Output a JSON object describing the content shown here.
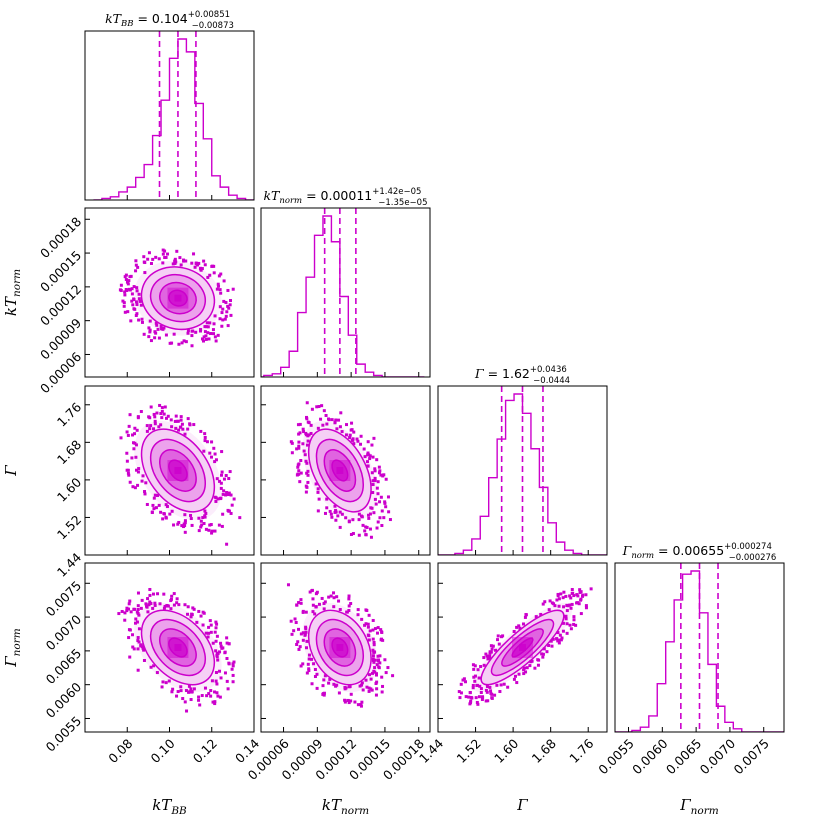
{
  "chart_data": {
    "type": "corner",
    "color": "#cc00cc",
    "parameters": [
      {
        "key": "kTBB",
        "label_main": "kT",
        "label_sub": "BB",
        "title_eq": " = 0.104",
        "title_plus": "+0.00851",
        "title_minus": "−0.00873",
        "median": 0.104,
        "q16": 0.09527,
        "q84": 0.11251,
        "range": [
          0.06,
          0.14
        ],
        "ticks": [
          {
            "v": 0.08,
            "t": "0.08"
          },
          {
            "v": 0.1,
            "t": "0.10"
          },
          {
            "v": 0.12,
            "t": "0.12"
          },
          {
            "v": 0.14,
            "t": "0.14"
          }
        ],
        "hist": {
          "bin_width": 0.004,
          "counts": [
            0,
            1,
            2,
            5,
            8,
            14,
            22,
            40,
            62,
            88,
            100,
            92,
            60,
            38,
            15,
            8,
            3,
            1,
            0,
            0
          ]
        }
      },
      {
        "key": "kTnorm",
        "label_main": "kT",
        "label_sub": "norm",
        "title_eq": " = 0.00011",
        "title_plus": "+1.42e−05",
        "title_minus": "−1.35e−05",
        "median": 0.00011,
        "q16": 9.65e-05,
        "q84": 0.0001242,
        "range": [
          4e-05,
          0.00019
        ],
        "ticks": [
          {
            "v": 6e-05,
            "t": "0.00006"
          },
          {
            "v": 9e-05,
            "t": "0.00009"
          },
          {
            "v": 0.00012,
            "t": "0.00012"
          },
          {
            "v": 0.00015,
            "t": "0.00015"
          },
          {
            "v": 0.00018,
            "t": "0.00018"
          }
        ],
        "hist": {
          "bin_width": 7.5e-06,
          "counts": [
            0,
            1,
            2,
            6,
            16,
            40,
            62,
            88,
            100,
            84,
            50,
            26,
            8,
            3,
            1,
            0,
            0,
            0,
            0,
            0
          ]
        }
      },
      {
        "key": "Gamma",
        "label_main": "Γ",
        "label_sub": "",
        "title_eq": " = 1.62",
        "title_plus": "+0.0436",
        "title_minus": "−0.0444",
        "median": 1.62,
        "q16": 1.5756,
        "q84": 1.6636,
        "range": [
          1.44,
          1.8
        ],
        "ticks": [
          {
            "v": 1.44,
            "t": "1.44"
          },
          {
            "v": 1.52,
            "t": "1.52"
          },
          {
            "v": 1.6,
            "t": "1.60"
          },
          {
            "v": 1.68,
            "t": "1.68"
          },
          {
            "v": 1.76,
            "t": "1.76"
          }
        ],
        "hist": {
          "bin_width": 0.018,
          "counts": [
            0,
            0,
            1,
            3,
            10,
            24,
            48,
            72,
            96,
            100,
            88,
            66,
            42,
            20,
            8,
            3,
            1,
            0,
            0,
            0
          ]
        }
      },
      {
        "key": "Gammanorm",
        "label_main": "Γ",
        "label_sub": "norm",
        "title_eq": " = 0.00655",
        "title_plus": "+0.000274",
        "title_minus": "−0.000276",
        "median": 0.00655,
        "q16": 0.006274,
        "q84": 0.006824,
        "range": [
          0.0053,
          0.0078
        ],
        "ticks": [
          {
            "v": 0.0055,
            "t": "0.0055"
          },
          {
            "v": 0.006,
            "t": "0.0060"
          },
          {
            "v": 0.0065,
            "t": "0.0065"
          },
          {
            "v": 0.007,
            "t": "0.0070"
          },
          {
            "v": 0.0075,
            "t": "0.0075"
          }
        ],
        "hist": {
          "bin_width": 0.000125,
          "counts": [
            0,
            0,
            1,
            3,
            10,
            30,
            56,
            82,
            98,
            100,
            74,
            42,
            16,
            6,
            2,
            0,
            0,
            0,
            0,
            0
          ]
        }
      }
    ],
    "correlations": {
      "1,0": -0.1,
      "2,0": -0.4,
      "2,1": -0.45,
      "3,0": -0.4,
      "3,1": -0.3,
      "3,2": 0.85
    },
    "contour_levels_sigma": [
      0.5,
      1.0,
      1.5,
      2.0
    ],
    "show_median_lines": true,
    "show_quantile_lines": true
  }
}
